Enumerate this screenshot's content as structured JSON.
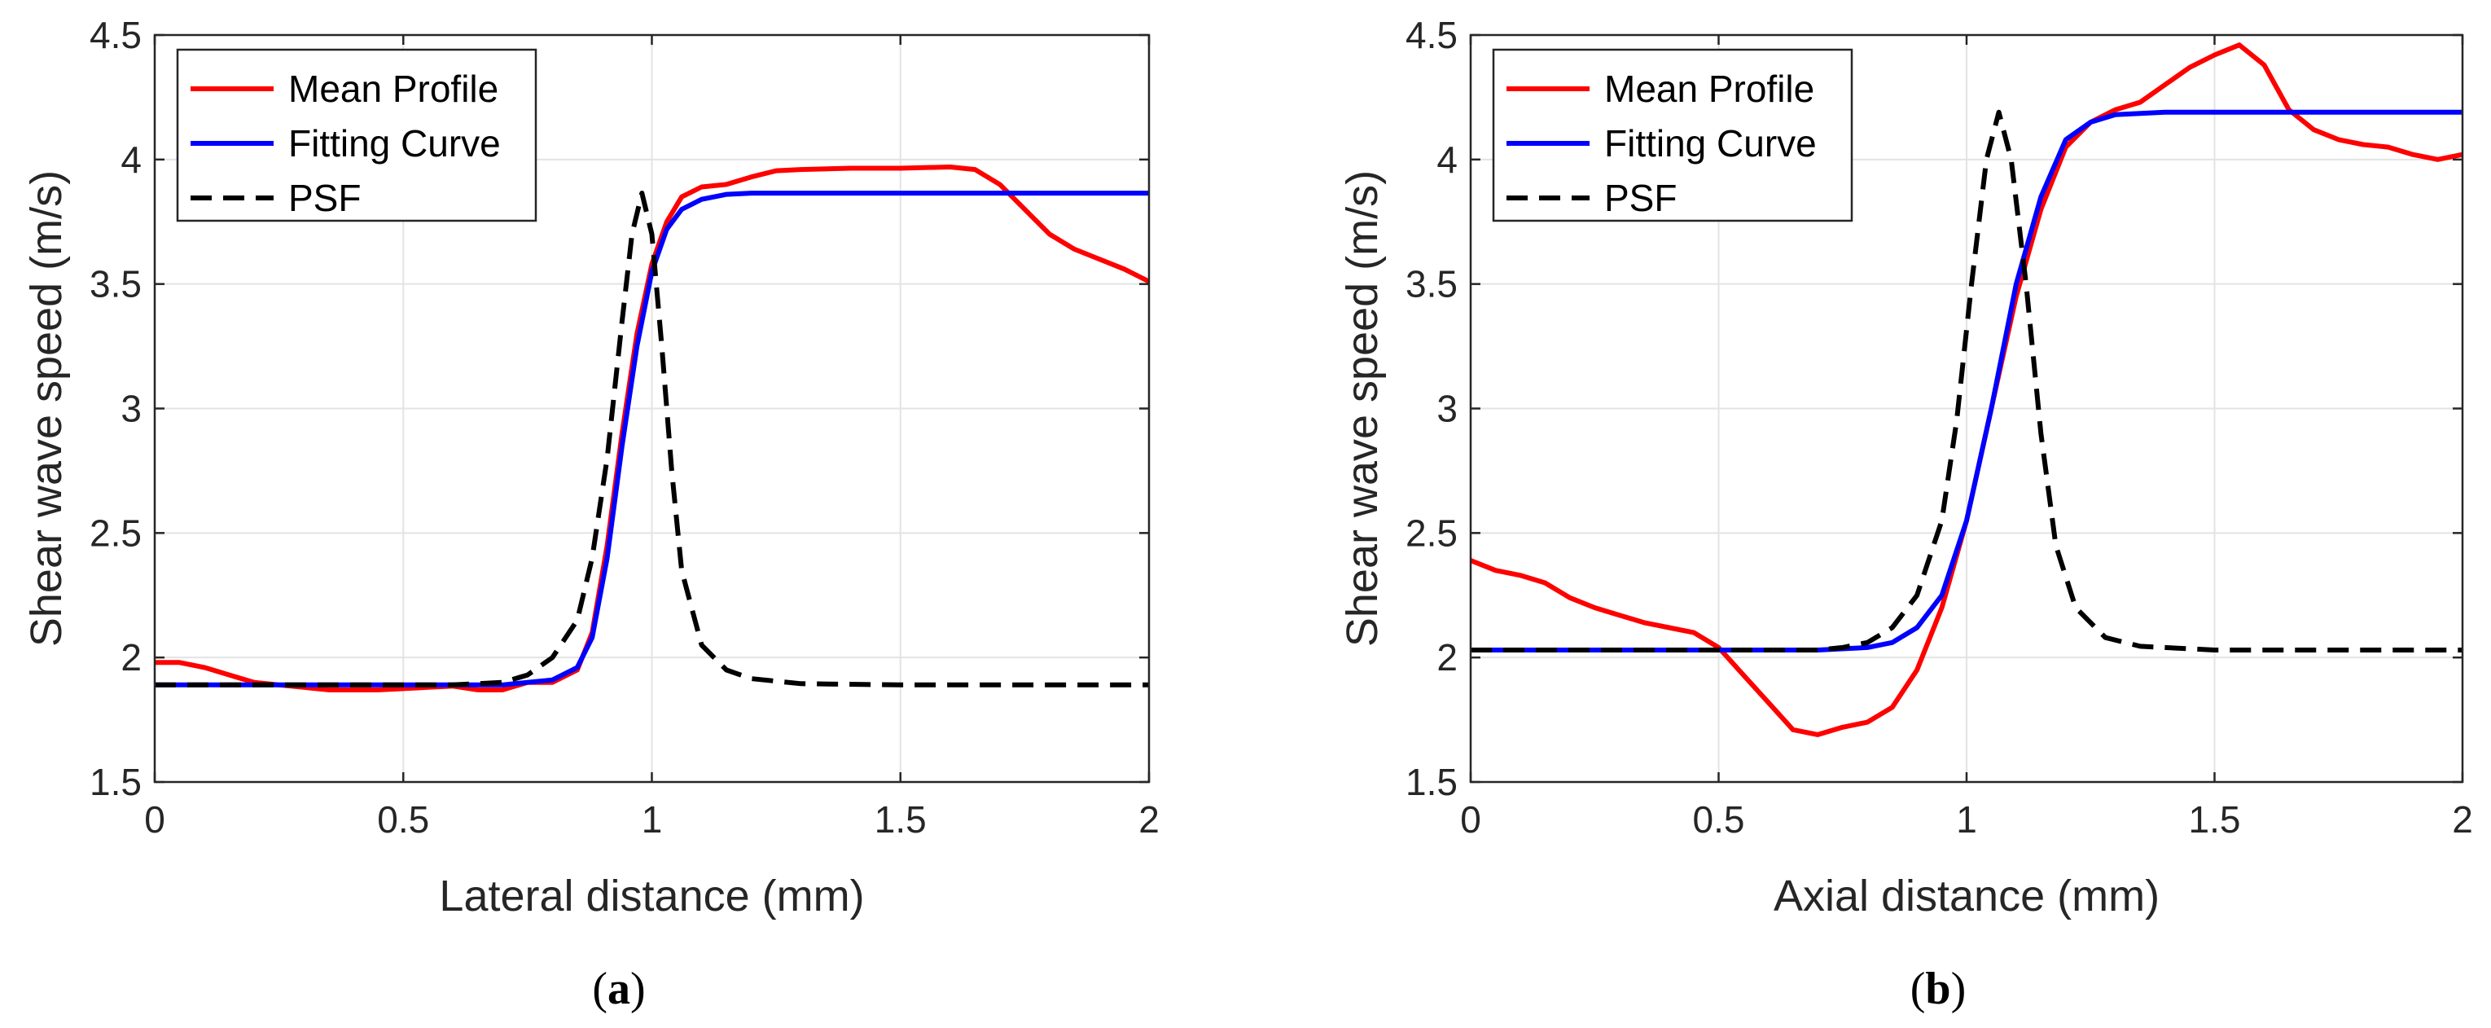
{
  "chart_data": [
    {
      "type": "line",
      "caption_letter": "a",
      "xlabel": "Lateral distance (mm)",
      "ylabel": "Shear wave speed (m/s)",
      "xlim": [
        0,
        2
      ],
      "ylim": [
        1.5,
        4.5
      ],
      "xticks": [
        0,
        0.5,
        1,
        1.5,
        2
      ],
      "xtick_labels": [
        "0",
        "0.5",
        "1",
        "1.5",
        "2"
      ],
      "yticks": [
        1.5,
        2,
        2.5,
        3,
        3.5,
        4,
        4.5
      ],
      "ytick_labels": [
        "1.5",
        "2",
        "2.5",
        "3",
        "3.5",
        "4",
        "4.5"
      ],
      "grid": true,
      "legend_position": "top-left",
      "series": [
        {
          "name": "Mean Profile",
          "color": "#ff0000",
          "style": "solid",
          "points": [
            [
              0,
              1.98
            ],
            [
              0.05,
              1.98
            ],
            [
              0.1,
              1.96
            ],
            [
              0.15,
              1.93
            ],
            [
              0.2,
              1.9
            ],
            [
              0.25,
              1.89
            ],
            [
              0.3,
              1.88
            ],
            [
              0.35,
              1.87
            ],
            [
              0.4,
              1.87
            ],
            [
              0.45,
              1.87
            ],
            [
              0.5,
              1.875
            ],
            [
              0.55,
              1.88
            ],
            [
              0.6,
              1.885
            ],
            [
              0.65,
              1.87
            ],
            [
              0.7,
              1.87
            ],
            [
              0.75,
              1.9
            ],
            [
              0.8,
              1.9
            ],
            [
              0.85,
              1.95
            ],
            [
              0.88,
              2.1
            ],
            [
              0.91,
              2.45
            ],
            [
              0.94,
              2.9
            ],
            [
              0.97,
              3.3
            ],
            [
              1.0,
              3.58
            ],
            [
              1.03,
              3.75
            ],
            [
              1.06,
              3.85
            ],
            [
              1.1,
              3.89
            ],
            [
              1.15,
              3.9
            ],
            [
              1.2,
              3.93
            ],
            [
              1.25,
              3.955
            ],
            [
              1.3,
              3.96
            ],
            [
              1.4,
              3.965
            ],
            [
              1.5,
              3.965
            ],
            [
              1.6,
              3.97
            ],
            [
              1.65,
              3.96
            ],
            [
              1.7,
              3.9
            ],
            [
              1.75,
              3.8
            ],
            [
              1.8,
              3.7
            ],
            [
              1.85,
              3.64
            ],
            [
              1.9,
              3.6
            ],
            [
              1.95,
              3.56
            ],
            [
              2.0,
              3.51
            ]
          ]
        },
        {
          "name": "Fitting Curve",
          "color": "#0000ff",
          "style": "solid",
          "points": [
            [
              0,
              1.89
            ],
            [
              0.6,
              1.89
            ],
            [
              0.7,
              1.89
            ],
            [
              0.75,
              1.9
            ],
            [
              0.8,
              1.91
            ],
            [
              0.85,
              1.96
            ],
            [
              0.88,
              2.08
            ],
            [
              0.91,
              2.4
            ],
            [
              0.94,
              2.85
            ],
            [
              0.97,
              3.25
            ],
            [
              1.0,
              3.55
            ],
            [
              1.03,
              3.72
            ],
            [
              1.06,
              3.8
            ],
            [
              1.1,
              3.84
            ],
            [
              1.15,
              3.86
            ],
            [
              1.2,
              3.865
            ],
            [
              1.3,
              3.865
            ],
            [
              2.0,
              3.865
            ]
          ]
        },
        {
          "name": "PSF",
          "color": "#000000",
          "style": "dashed",
          "points": [
            [
              0,
              1.89
            ],
            [
              0.6,
              1.89
            ],
            [
              0.7,
              1.9
            ],
            [
              0.75,
              1.93
            ],
            [
              0.8,
              2.0
            ],
            [
              0.85,
              2.15
            ],
            [
              0.88,
              2.4
            ],
            [
              0.91,
              2.8
            ],
            [
              0.94,
              3.35
            ],
            [
              0.96,
              3.7
            ],
            [
              0.98,
              3.865
            ],
            [
              1.0,
              3.7
            ],
            [
              1.02,
              3.25
            ],
            [
              1.04,
              2.75
            ],
            [
              1.06,
              2.35
            ],
            [
              1.1,
              2.05
            ],
            [
              1.15,
              1.95
            ],
            [
              1.2,
              1.915
            ],
            [
              1.3,
              1.895
            ],
            [
              1.5,
              1.89
            ],
            [
              2.0,
              1.89
            ]
          ]
        }
      ]
    },
    {
      "type": "line",
      "caption_letter": "b",
      "xlabel": "Axial distance (mm)",
      "ylabel": "Shear wave speed (m/s)",
      "xlim": [
        0,
        2
      ],
      "ylim": [
        1.5,
        4.5
      ],
      "xticks": [
        0,
        0.5,
        1,
        1.5,
        2
      ],
      "xtick_labels": [
        "0",
        "0.5",
        "1",
        "1.5",
        "2"
      ],
      "yticks": [
        1.5,
        2,
        2.5,
        3,
        3.5,
        4,
        4.5
      ],
      "ytick_labels": [
        "1.5",
        "2",
        "2.5",
        "3",
        "3.5",
        "4",
        "4.5"
      ],
      "grid": true,
      "legend_position": "top-left",
      "series": [
        {
          "name": "Mean Profile",
          "color": "#ff0000",
          "style": "solid",
          "points": [
            [
              0,
              2.39
            ],
            [
              0.05,
              2.35
            ],
            [
              0.1,
              2.33
            ],
            [
              0.15,
              2.3
            ],
            [
              0.2,
              2.24
            ],
            [
              0.25,
              2.2
            ],
            [
              0.3,
              2.17
            ],
            [
              0.35,
              2.14
            ],
            [
              0.4,
              2.12
            ],
            [
              0.45,
              2.1
            ],
            [
              0.5,
              2.04
            ],
            [
              0.55,
              1.93
            ],
            [
              0.6,
              1.82
            ],
            [
              0.65,
              1.71
            ],
            [
              0.7,
              1.69
            ],
            [
              0.75,
              1.72
            ],
            [
              0.8,
              1.74
            ],
            [
              0.85,
              1.8
            ],
            [
              0.9,
              1.95
            ],
            [
              0.95,
              2.2
            ],
            [
              1.0,
              2.55
            ],
            [
              1.05,
              3.0
            ],
            [
              1.1,
              3.45
            ],
            [
              1.15,
              3.8
            ],
            [
              1.2,
              4.05
            ],
            [
              1.25,
              4.15
            ],
            [
              1.3,
              4.2
            ],
            [
              1.35,
              4.23
            ],
            [
              1.4,
              4.3
            ],
            [
              1.45,
              4.37
            ],
            [
              1.5,
              4.42
            ],
            [
              1.55,
              4.46
            ],
            [
              1.6,
              4.38
            ],
            [
              1.65,
              4.2
            ],
            [
              1.7,
              4.12
            ],
            [
              1.75,
              4.08
            ],
            [
              1.8,
              4.06
            ],
            [
              1.85,
              4.05
            ],
            [
              1.9,
              4.02
            ],
            [
              1.95,
              4.0
            ],
            [
              2.0,
              4.02
            ]
          ]
        },
        {
          "name": "Fitting Curve",
          "color": "#0000ff",
          "style": "solid",
          "points": [
            [
              0,
              2.03
            ],
            [
              0.7,
              2.03
            ],
            [
              0.8,
              2.04
            ],
            [
              0.85,
              2.06
            ],
            [
              0.9,
              2.12
            ],
            [
              0.95,
              2.25
            ],
            [
              1.0,
              2.55
            ],
            [
              1.05,
              3.0
            ],
            [
              1.1,
              3.5
            ],
            [
              1.15,
              3.85
            ],
            [
              1.2,
              4.08
            ],
            [
              1.25,
              4.15
            ],
            [
              1.3,
              4.18
            ],
            [
              1.4,
              4.19
            ],
            [
              2.0,
              4.19
            ]
          ]
        },
        {
          "name": "PSF",
          "color": "#000000",
          "style": "dashed",
          "points": [
            [
              0,
              2.03
            ],
            [
              0.7,
              2.03
            ],
            [
              0.75,
              2.04
            ],
            [
              0.8,
              2.06
            ],
            [
              0.85,
              2.12
            ],
            [
              0.9,
              2.25
            ],
            [
              0.95,
              2.55
            ],
            [
              0.98,
              2.95
            ],
            [
              1.01,
              3.5
            ],
            [
              1.04,
              4.0
            ],
            [
              1.065,
              4.19
            ],
            [
              1.09,
              4.0
            ],
            [
              1.12,
              3.5
            ],
            [
              1.15,
              2.9
            ],
            [
              1.18,
              2.45
            ],
            [
              1.22,
              2.2
            ],
            [
              1.28,
              2.08
            ],
            [
              1.35,
              2.045
            ],
            [
              1.5,
              2.03
            ],
            [
              2.0,
              2.03
            ]
          ]
        }
      ]
    }
  ]
}
